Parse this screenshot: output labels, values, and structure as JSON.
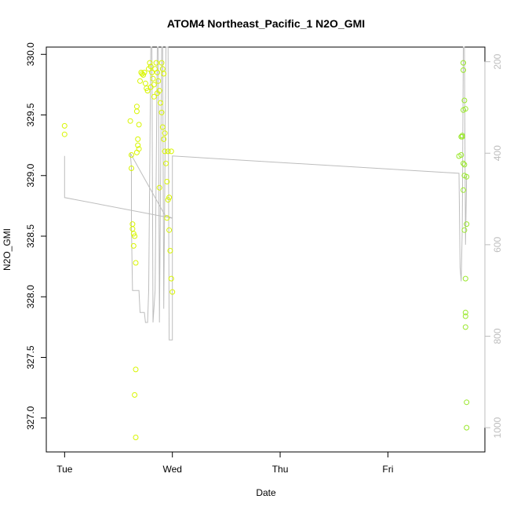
{
  "chart_data": {
    "type": "scatter",
    "title": "ATOM4 Northeast_Pacific_1 N2O_GMI",
    "xlabel": "Date",
    "ylabel": "N2O_GMI",
    "x_unit": "days since Tue 00:00",
    "xlim": [
      -0.17,
      3.9
    ],
    "ylim": [
      326.72,
      330.06
    ],
    "x_ticks": [
      {
        "value": 0,
        "label": "Tue"
      },
      {
        "value": 1,
        "label": "Wed"
      },
      {
        "value": 2,
        "label": "Thu"
      },
      {
        "value": 3,
        "label": "Fri"
      }
    ],
    "y_ticks": [
      {
        "value": 327.0,
        "label": "327.0"
      },
      {
        "value": 327.5,
        "label": "327.5"
      },
      {
        "value": 328.0,
        "label": "328.0"
      },
      {
        "value": 328.5,
        "label": "328.5"
      },
      {
        "value": 329.0,
        "label": "329.0"
      },
      {
        "value": 329.5,
        "label": "329.5"
      },
      {
        "value": 330.0,
        "label": "330.0"
      }
    ],
    "y2_lim": [
      1053,
      168
    ],
    "y2_ticks": [
      {
        "value": 200,
        "label": "200"
      },
      {
        "value": 400,
        "label": "400"
      },
      {
        "value": 600,
        "label": "600"
      },
      {
        "value": 800,
        "label": "800"
      },
      {
        "value": 1000,
        "label": "1000"
      }
    ],
    "point_color_early": "#d8f500",
    "point_color_late": "#9ae82c",
    "line_color": "#bdbdbd",
    "points": [
      {
        "x": 0.0,
        "y": 329.41
      },
      {
        "x": 0.0,
        "y": 329.34
      },
      {
        "x": 0.61,
        "y": 329.45
      },
      {
        "x": 0.62,
        "y": 329.17
      },
      {
        "x": 0.62,
        "y": 329.06
      },
      {
        "x": 0.63,
        "y": 328.6
      },
      {
        "x": 0.63,
        "y": 328.56
      },
      {
        "x": 0.64,
        "y": 328.52
      },
      {
        "x": 0.64,
        "y": 328.42
      },
      {
        "x": 0.65,
        "y": 328.5
      },
      {
        "x": 0.66,
        "y": 328.28
      },
      {
        "x": 0.65,
        "y": 327.19
      },
      {
        "x": 0.66,
        "y": 327.4
      },
      {
        "x": 0.66,
        "y": 326.84
      },
      {
        "x": 0.67,
        "y": 329.57
      },
      {
        "x": 0.67,
        "y": 329.53
      },
      {
        "x": 0.68,
        "y": 329.3
      },
      {
        "x": 0.68,
        "y": 329.25
      },
      {
        "x": 0.69,
        "y": 329.22
      },
      {
        "x": 0.69,
        "y": 329.42
      },
      {
        "x": 0.67,
        "y": 329.19
      },
      {
        "x": 0.7,
        "y": 329.78
      },
      {
        "x": 0.71,
        "y": 329.85
      },
      {
        "x": 0.72,
        "y": 329.84
      },
      {
        "x": 0.73,
        "y": 329.83
      },
      {
        "x": 0.74,
        "y": 329.85
      },
      {
        "x": 0.75,
        "y": 329.76
      },
      {
        "x": 0.76,
        "y": 329.72
      },
      {
        "x": 0.77,
        "y": 329.7
      },
      {
        "x": 0.78,
        "y": 329.88
      },
      {
        "x": 0.79,
        "y": 329.93
      },
      {
        "x": 0.8,
        "y": 329.9
      },
      {
        "x": 0.81,
        "y": 329.85
      },
      {
        "x": 0.82,
        "y": 329.8
      },
      {
        "x": 0.83,
        "y": 329.75
      },
      {
        "x": 0.84,
        "y": 329.88
      },
      {
        "x": 0.85,
        "y": 329.93
      },
      {
        "x": 0.86,
        "y": 329.85
      },
      {
        "x": 0.87,
        "y": 329.78
      },
      {
        "x": 0.88,
        "y": 329.7
      },
      {
        "x": 0.89,
        "y": 329.6
      },
      {
        "x": 0.9,
        "y": 329.52
      },
      {
        "x": 0.91,
        "y": 329.4
      },
      {
        "x": 0.92,
        "y": 329.3
      },
      {
        "x": 0.93,
        "y": 329.2
      },
      {
        "x": 0.94,
        "y": 329.1
      },
      {
        "x": 0.95,
        "y": 328.95
      },
      {
        "x": 0.96,
        "y": 328.8
      },
      {
        "x": 0.97,
        "y": 328.55
      },
      {
        "x": 0.98,
        "y": 328.38
      },
      {
        "x": 0.99,
        "y": 328.15
      },
      {
        "x": 1.0,
        "y": 328.04
      },
      {
        "x": 0.9,
        "y": 329.93
      },
      {
        "x": 0.91,
        "y": 329.88
      },
      {
        "x": 0.92,
        "y": 329.84
      },
      {
        "x": 0.88,
        "y": 328.9
      },
      {
        "x": 0.95,
        "y": 328.65
      },
      {
        "x": 0.93,
        "y": 329.35
      },
      {
        "x": 0.96,
        "y": 329.2
      },
      {
        "x": 0.97,
        "y": 328.82
      },
      {
        "x": 0.99,
        "y": 329.2
      },
      {
        "x": 0.8,
        "y": 329.73
      },
      {
        "x": 0.83,
        "y": 329.65
      },
      {
        "x": 0.86,
        "y": 329.68
      },
      {
        "x": 3.7,
        "y": 329.93
      },
      {
        "x": 3.7,
        "y": 329.87
      },
      {
        "x": 3.71,
        "y": 329.62
      },
      {
        "x": 3.7,
        "y": 329.54
      },
      {
        "x": 3.68,
        "y": 329.32
      },
      {
        "x": 3.69,
        "y": 329.33
      },
      {
        "x": 3.7,
        "y": 329.1
      },
      {
        "x": 3.68,
        "y": 329.17
      },
      {
        "x": 3.71,
        "y": 329.09
      },
      {
        "x": 3.71,
        "y": 329.0
      },
      {
        "x": 3.7,
        "y": 328.88
      },
      {
        "x": 3.73,
        "y": 328.99
      },
      {
        "x": 3.73,
        "y": 328.6
      },
      {
        "x": 3.71,
        "y": 328.55
      },
      {
        "x": 3.72,
        "y": 328.15
      },
      {
        "x": 3.72,
        "y": 327.87
      },
      {
        "x": 3.72,
        "y": 327.84
      },
      {
        "x": 3.72,
        "y": 327.75
      },
      {
        "x": 3.73,
        "y": 327.13
      },
      {
        "x": 3.73,
        "y": 326.92
      },
      {
        "x": 3.72,
        "y": 329.55
      },
      {
        "x": 3.66,
        "y": 329.16
      },
      {
        "x": 3.69,
        "y": 329.32
      }
    ],
    "line": [
      {
        "x": 0.0,
        "y2": 406
      },
      {
        "x": 0.0,
        "y2": 497
      },
      {
        "x": 1.0,
        "y2": 542
      },
      {
        "x": 0.93,
        "y2": 535
      },
      {
        "x": 0.61,
        "y2": 400
      },
      {
        "x": 0.62,
        "y2": 430
      },
      {
        "x": 0.62,
        "y2": 560
      },
      {
        "x": 0.63,
        "y2": 700
      },
      {
        "x": 0.69,
        "y2": 700
      },
      {
        "x": 0.7,
        "y2": 748
      },
      {
        "x": 0.74,
        "y2": 748
      },
      {
        "x": 0.75,
        "y2": 770
      },
      {
        "x": 0.77,
        "y2": 770
      },
      {
        "x": 0.78,
        "y2": 700
      },
      {
        "x": 0.8,
        "y2": 168
      },
      {
        "x": 0.81,
        "y2": 168
      },
      {
        "x": 0.82,
        "y2": 770
      },
      {
        "x": 0.84,
        "y2": 700
      },
      {
        "x": 0.86,
        "y2": 168
      },
      {
        "x": 0.87,
        "y2": 168
      },
      {
        "x": 0.88,
        "y2": 770
      },
      {
        "x": 0.9,
        "y2": 168
      },
      {
        "x": 0.91,
        "y2": 168
      },
      {
        "x": 0.92,
        "y2": 740
      },
      {
        "x": 0.94,
        "y2": 168
      },
      {
        "x": 0.96,
        "y2": 168
      },
      {
        "x": 0.97,
        "y2": 808
      },
      {
        "x": 1.0,
        "y2": 808
      },
      {
        "x": 1.0,
        "y2": 406
      },
      {
        "x": 3.66,
        "y2": 444
      },
      {
        "x": 3.67,
        "y2": 650
      },
      {
        "x": 3.68,
        "y2": 680
      },
      {
        "x": 3.69,
        "y2": 560
      },
      {
        "x": 3.7,
        "y2": 168
      },
      {
        "x": 3.71,
        "y2": 168
      },
      {
        "x": 3.72,
        "y2": 600
      },
      {
        "x": 3.73,
        "y2": 450
      }
    ]
  }
}
